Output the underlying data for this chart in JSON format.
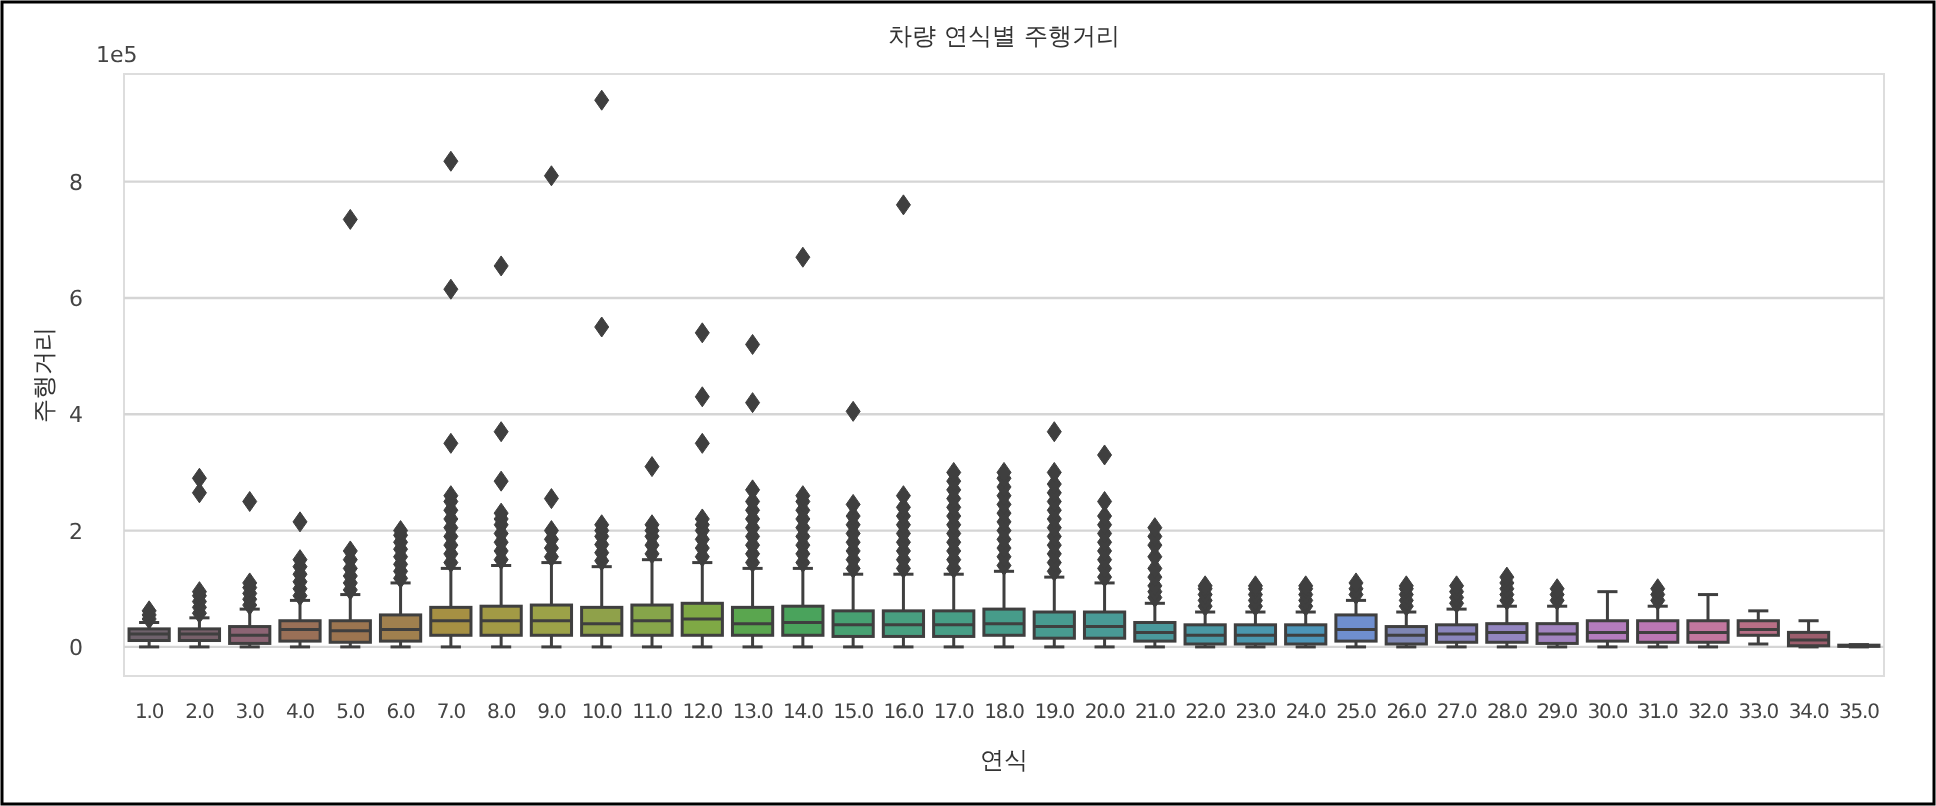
{
  "chart_data": {
    "type": "box",
    "title": "차량 연식별 주행거리",
    "xlabel": "연식",
    "ylabel": "주행거리",
    "annotations": [
      "1e5"
    ],
    "categories": [
      "1.0",
      "2.0",
      "3.0",
      "4.0",
      "5.0",
      "6.0",
      "7.0",
      "8.0",
      "9.0",
      "10.0",
      "11.0",
      "12.0",
      "13.0",
      "14.0",
      "15.0",
      "16.0",
      "17.0",
      "18.0",
      "19.0",
      "20.0",
      "21.0",
      "22.0",
      "23.0",
      "24.0",
      "25.0",
      "26.0",
      "27.0",
      "28.0",
      "29.0",
      "30.0",
      "31.0",
      "32.0",
      "33.0",
      "34.0",
      "35.0"
    ],
    "colors": [
      "#6f626c",
      "#77606a",
      "#8c6474",
      "#9a7057",
      "#9c7550",
      "#a0804e",
      "#a69043",
      "#a29a45",
      "#9ca248",
      "#8fa14a",
      "#86a54a",
      "#7fa945",
      "#5aa64f",
      "#4aa35c",
      "#47a172",
      "#489f80",
      "#479e86",
      "#479c8a",
      "#489b90",
      "#499a96",
      "#4a999c",
      "#4a98a4",
      "#4a97ae",
      "#4c95b8",
      "#6f8fcf",
      "#7e86b3",
      "#8a85bd",
      "#9385c0",
      "#a283c0",
      "#b47cbd",
      "#bb77b4",
      "#c2779f",
      "#b86f86",
      "#9c5d6c",
      "#7f5560"
    ],
    "boxes": [
      {
        "low": 0,
        "q1": 0.11,
        "median": 0.22,
        "q3": 0.31,
        "high": 0.42,
        "outliers": [
          0.48,
          0.55,
          0.62
        ]
      },
      {
        "low": 0,
        "q1": 0.11,
        "median": 0.22,
        "q3": 0.31,
        "high": 0.5,
        "outliers": [
          0.58,
          0.68,
          0.78,
          0.88,
          0.95,
          2.65,
          2.9
        ]
      },
      {
        "low": 0,
        "q1": 0.06,
        "median": 0.2,
        "q3": 0.35,
        "high": 0.65,
        "outliers": [
          0.72,
          0.82,
          0.92,
          1.02,
          1.1,
          2.5
        ]
      },
      {
        "low": 0,
        "q1": 0.1,
        "median": 0.3,
        "q3": 0.45,
        "high": 0.8,
        "outliers": [
          0.88,
          1.0,
          1.12,
          1.25,
          1.38,
          1.5,
          2.15
        ]
      },
      {
        "low": 0,
        "q1": 0.08,
        "median": 0.28,
        "q3": 0.45,
        "high": 0.9,
        "outliers": [
          0.98,
          1.1,
          1.22,
          1.35,
          1.5,
          1.65,
          7.35
        ]
      },
      {
        "low": 0,
        "q1": 0.1,
        "median": 0.3,
        "q3": 0.55,
        "high": 1.1,
        "outliers": [
          1.18,
          1.3,
          1.42,
          1.55,
          1.68,
          1.8,
          1.92,
          2.0
        ]
      },
      {
        "low": 0,
        "q1": 0.2,
        "median": 0.45,
        "q3": 0.68,
        "high": 1.35,
        "outliers": [
          1.45,
          1.6,
          1.75,
          1.9,
          2.05,
          2.2,
          2.35,
          2.5,
          2.6,
          3.5,
          6.15,
          8.35
        ]
      },
      {
        "low": 0,
        "q1": 0.2,
        "median": 0.45,
        "q3": 0.7,
        "high": 1.4,
        "outliers": [
          1.5,
          1.65,
          1.8,
          1.95,
          2.1,
          2.2,
          2.3,
          2.85,
          3.7,
          6.55
        ]
      },
      {
        "low": 0,
        "q1": 0.2,
        "median": 0.45,
        "q3": 0.72,
        "high": 1.45,
        "outliers": [
          1.55,
          1.7,
          1.85,
          2.0,
          2.55,
          8.1
        ]
      },
      {
        "low": 0,
        "q1": 0.2,
        "median": 0.4,
        "q3": 0.68,
        "high": 1.38,
        "outliers": [
          1.48,
          1.62,
          1.76,
          1.9,
          2.0,
          2.1,
          5.5,
          9.4
        ]
      },
      {
        "low": 0,
        "q1": 0.2,
        "median": 0.45,
        "q3": 0.72,
        "high": 1.5,
        "outliers": [
          1.6,
          1.75,
          1.9,
          2.0,
          2.1,
          3.1
        ]
      },
      {
        "low": 0,
        "q1": 0.2,
        "median": 0.48,
        "q3": 0.75,
        "high": 1.45,
        "outliers": [
          1.55,
          1.7,
          1.85,
          2.0,
          2.1,
          2.2,
          3.5,
          4.3,
          5.4
        ]
      },
      {
        "low": 0,
        "q1": 0.2,
        "median": 0.4,
        "q3": 0.68,
        "high": 1.35,
        "outliers": [
          1.45,
          1.6,
          1.75,
          1.9,
          2.05,
          2.2,
          2.35,
          2.5,
          2.7,
          4.2,
          5.2
        ]
      },
      {
        "low": 0,
        "q1": 0.2,
        "median": 0.42,
        "q3": 0.7,
        "high": 1.35,
        "outliers": [
          1.45,
          1.6,
          1.75,
          1.9,
          2.05,
          2.2,
          2.35,
          2.5,
          2.6,
          6.7
        ]
      },
      {
        "low": 0,
        "q1": 0.18,
        "median": 0.38,
        "q3": 0.62,
        "high": 1.25,
        "outliers": [
          1.35,
          1.5,
          1.65,
          1.8,
          1.95,
          2.1,
          2.25,
          2.45,
          4.05
        ]
      },
      {
        "low": 0,
        "q1": 0.18,
        "median": 0.38,
        "q3": 0.62,
        "high": 1.25,
        "outliers": [
          1.35,
          1.5,
          1.65,
          1.8,
          1.95,
          2.1,
          2.25,
          2.4,
          2.6,
          7.6
        ]
      },
      {
        "low": 0,
        "q1": 0.18,
        "median": 0.38,
        "q3": 0.62,
        "high": 1.25,
        "outliers": [
          1.35,
          1.5,
          1.65,
          1.8,
          1.95,
          2.1,
          2.25,
          2.4,
          2.55,
          2.7,
          2.85,
          3.0
        ]
      },
      {
        "low": 0,
        "q1": 0.2,
        "median": 0.4,
        "q3": 0.65,
        "high": 1.3,
        "outliers": [
          1.4,
          1.55,
          1.7,
          1.85,
          2.0,
          2.15,
          2.3,
          2.45,
          2.6,
          2.75,
          2.9,
          3.0
        ]
      },
      {
        "low": 0,
        "q1": 0.15,
        "median": 0.35,
        "q3": 0.6,
        "high": 1.2,
        "outliers": [
          1.3,
          1.45,
          1.6,
          1.75,
          1.9,
          2.05,
          2.2,
          2.35,
          2.5,
          2.65,
          2.8,
          3.0,
          3.7
        ]
      },
      {
        "low": 0,
        "q1": 0.15,
        "median": 0.35,
        "q3": 0.6,
        "high": 1.1,
        "outliers": [
          1.2,
          1.35,
          1.5,
          1.65,
          1.8,
          1.95,
          2.1,
          2.25,
          2.5,
          3.3
        ]
      },
      {
        "low": 0,
        "q1": 0.1,
        "median": 0.25,
        "q3": 0.42,
        "high": 0.75,
        "outliers": [
          0.85,
          0.95,
          1.05,
          1.2,
          1.35,
          1.55,
          1.75,
          1.9,
          2.05
        ]
      },
      {
        "low": 0,
        "q1": 0.05,
        "median": 0.2,
        "q3": 0.38,
        "high": 0.6,
        "outliers": [
          0.7,
          0.8,
          0.9,
          1.0,
          1.05
        ]
      },
      {
        "low": 0,
        "q1": 0.05,
        "median": 0.2,
        "q3": 0.38,
        "high": 0.6,
        "outliers": [
          0.7,
          0.8,
          0.9,
          1.0,
          1.05
        ]
      },
      {
        "low": 0,
        "q1": 0.05,
        "median": 0.2,
        "q3": 0.38,
        "high": 0.6,
        "outliers": [
          0.7,
          0.8,
          0.9,
          1.0,
          1.05
        ]
      },
      {
        "low": 0,
        "q1": 0.1,
        "median": 0.3,
        "q3": 0.55,
        "high": 0.8,
        "outliers": [
          0.9,
          1.0,
          1.1
        ]
      },
      {
        "low": 0,
        "q1": 0.05,
        "median": 0.2,
        "q3": 0.35,
        "high": 0.6,
        "outliers": [
          0.7,
          0.8,
          0.9,
          1.0,
          1.05
        ]
      },
      {
        "low": 0,
        "q1": 0.08,
        "median": 0.22,
        "q3": 0.38,
        "high": 0.65,
        "outliers": [
          0.75,
          0.85,
          0.95,
          1.05
        ]
      },
      {
        "low": 0,
        "q1": 0.08,
        "median": 0.25,
        "q3": 0.4,
        "high": 0.7,
        "outliers": [
          0.8,
          0.9,
          1.0,
          1.1,
          1.2
        ]
      },
      {
        "low": 0,
        "q1": 0.06,
        "median": 0.22,
        "q3": 0.4,
        "high": 0.7,
        "outliers": [
          0.8,
          0.9,
          1.0
        ]
      },
      {
        "low": 0,
        "q1": 0.1,
        "median": 0.25,
        "q3": 0.45,
        "high": 0.95
      },
      {
        "low": 0,
        "q1": 0.08,
        "median": 0.25,
        "q3": 0.45,
        "high": 0.7,
        "outliers": [
          0.8,
          0.9,
          1.0
        ]
      },
      {
        "low": 0,
        "q1": 0.08,
        "median": 0.25,
        "q3": 0.45,
        "high": 0.9
      },
      {
        "low": 0.05,
        "q1": 0.2,
        "median": 0.3,
        "q3": 0.45,
        "high": 0.62
      },
      {
        "low": 0,
        "q1": 0.02,
        "median": 0.12,
        "q3": 0.25,
        "high": 0.45
      },
      {
        "low": 0,
        "q1": 0.01,
        "median": 0.02,
        "q3": 0.03,
        "high": 0.04
      }
    ],
    "ylim": [
      -0.5,
      9.85
    ],
    "yticks": [
      0,
      2,
      4,
      6,
      8
    ],
    "grid": "y",
    "marker": "diamond"
  }
}
